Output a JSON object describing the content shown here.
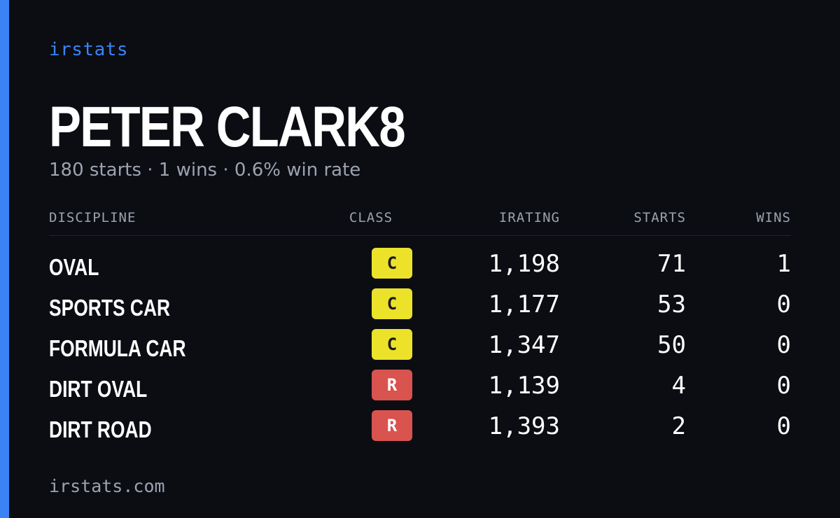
{
  "colors": {
    "background": "#0b0d13",
    "accent": "#3b82f6",
    "muted": "#9ca3af",
    "class_c": "#ece22a",
    "class_r": "#d9534f"
  },
  "brand": "irstats",
  "driver": {
    "name": "PETER CLARK8",
    "summary": "180 starts · 1 wins · 0.6% win rate"
  },
  "table": {
    "headers": {
      "discipline": "DISCIPLINE",
      "class": "CLASS",
      "irating": "IRATING",
      "starts": "STARTS",
      "wins": "WINS"
    },
    "rows": [
      {
        "discipline": "OVAL",
        "class": "C",
        "irating": "1,198",
        "starts": "71",
        "wins": "1"
      },
      {
        "discipline": "SPORTS CAR",
        "class": "C",
        "irating": "1,177",
        "starts": "53",
        "wins": "0"
      },
      {
        "discipline": "FORMULA CAR",
        "class": "C",
        "irating": "1,347",
        "starts": "50",
        "wins": "0"
      },
      {
        "discipline": "DIRT OVAL",
        "class": "R",
        "irating": "1,139",
        "starts": "4",
        "wins": "0"
      },
      {
        "discipline": "DIRT ROAD",
        "class": "R",
        "irating": "1,393",
        "starts": "2",
        "wins": "0"
      }
    ]
  },
  "footer": "irstats.com"
}
